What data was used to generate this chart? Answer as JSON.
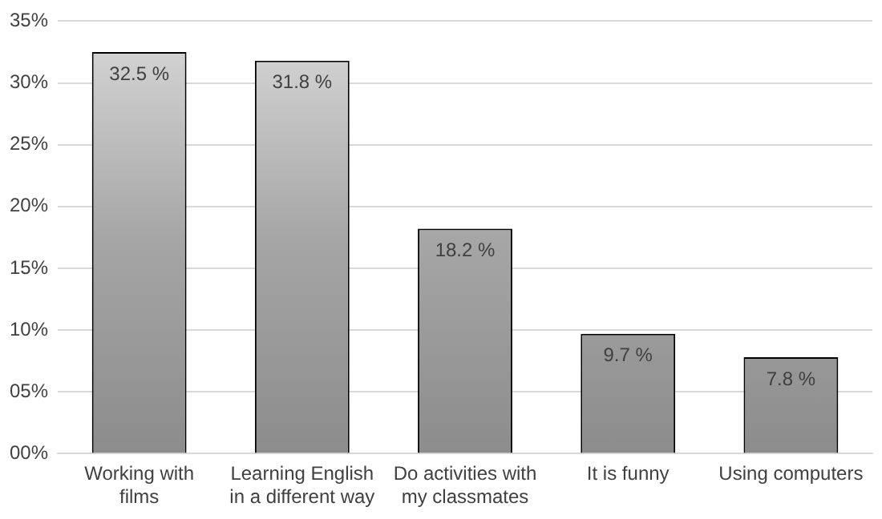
{
  "chart_data": {
    "type": "bar",
    "categories": [
      "Working with films",
      "Learning English in a different way",
      "Do activities with my classmates",
      "It is funny",
      "Using computers"
    ],
    "values": [
      32.5,
      31.8,
      18.2,
      9.7,
      7.8
    ],
    "value_labels": [
      "32.5 %",
      "31.8 %",
      "18.2 %",
      "9.7 %",
      "7.8 %"
    ],
    "color": "#a6a6a6",
    "ylim": [
      0,
      35
    ],
    "yticks": [
      {
        "value": 0,
        "label": "00%"
      },
      {
        "value": 5,
        "label": "05%"
      },
      {
        "value": 10,
        "label": "10%"
      },
      {
        "value": 15,
        "label": "15%"
      },
      {
        "value": 20,
        "label": "20%"
      },
      {
        "value": 25,
        "label": "25%"
      },
      {
        "value": 30,
        "label": "30%"
      },
      {
        "value": 35,
        "label": "35%"
      }
    ],
    "grid": "y"
  }
}
